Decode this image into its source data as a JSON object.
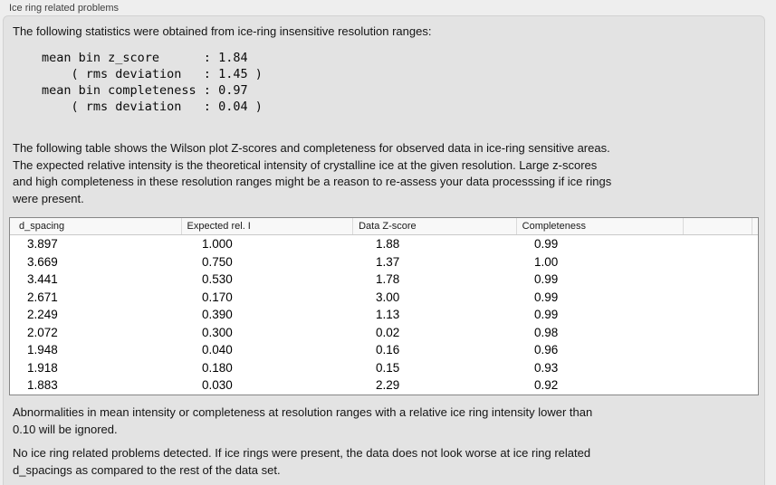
{
  "window": {
    "title": "Ice ring related problems"
  },
  "panel": {
    "intro": "The following statistics were obtained from ice-ring insensitive resolution ranges:",
    "stats_block": "mean bin z_score      : 1.84\n    ( rms deviation   : 1.45 )\nmean bin completeness : 0.97\n    ( rms deviation   : 0.04 )",
    "stats": {
      "mean_bin_z_score": "1.84",
      "z_score_rms_deviation": "1.45",
      "mean_bin_completeness": "0.97",
      "completeness_rms_deviation": "0.04"
    },
    "table_description": "The following table shows the Wilson plot Z-scores and completeness for observed data in ice-ring sensitive areas.\nThe expected relative intensity is the theoretical intensity of crystalline ice at the given resolution. Large z-scores\nand high completeness in these resolution ranges might be a reason to re-assess your data processsing if ice rings\nwere present.",
    "ignore_note": "Abnormalities in mean intensity or completeness at resolution ranges with a relative ice ring intensity lower than\n0.10 will be ignored.",
    "conclusion": "No ice ring related problems detected. If ice rings were present, the data does not look worse at ice ring related\nd_spacings as compared to the rest of the data set."
  },
  "table": {
    "columns": [
      "d_spacing",
      "Expected rel. I",
      "Data Z-score",
      "Completeness"
    ],
    "rows": [
      [
        "3.897",
        "1.000",
        "1.88",
        "0.99"
      ],
      [
        "3.669",
        "0.750",
        "1.37",
        "1.00"
      ],
      [
        "3.441",
        "0.530",
        "1.78",
        "0.99"
      ],
      [
        "2.671",
        "0.170",
        "3.00",
        "0.99"
      ],
      [
        "2.249",
        "0.390",
        "1.13",
        "0.99"
      ],
      [
        "2.072",
        "0.300",
        "0.02",
        "0.98"
      ],
      [
        "1.948",
        "0.040",
        "0.16",
        "0.96"
      ],
      [
        "1.918",
        "0.180",
        "0.15",
        "0.93"
      ],
      [
        "1.883",
        "0.030",
        "2.29",
        "0.92"
      ]
    ]
  },
  "colors": {
    "page_background": "#eeeeee",
    "panel_background": "#e3e3e3",
    "panel_border": "#d2d2d2",
    "table_background": "#ffffff",
    "table_border": "#868686",
    "table_header_background": "#f8f8f8"
  }
}
